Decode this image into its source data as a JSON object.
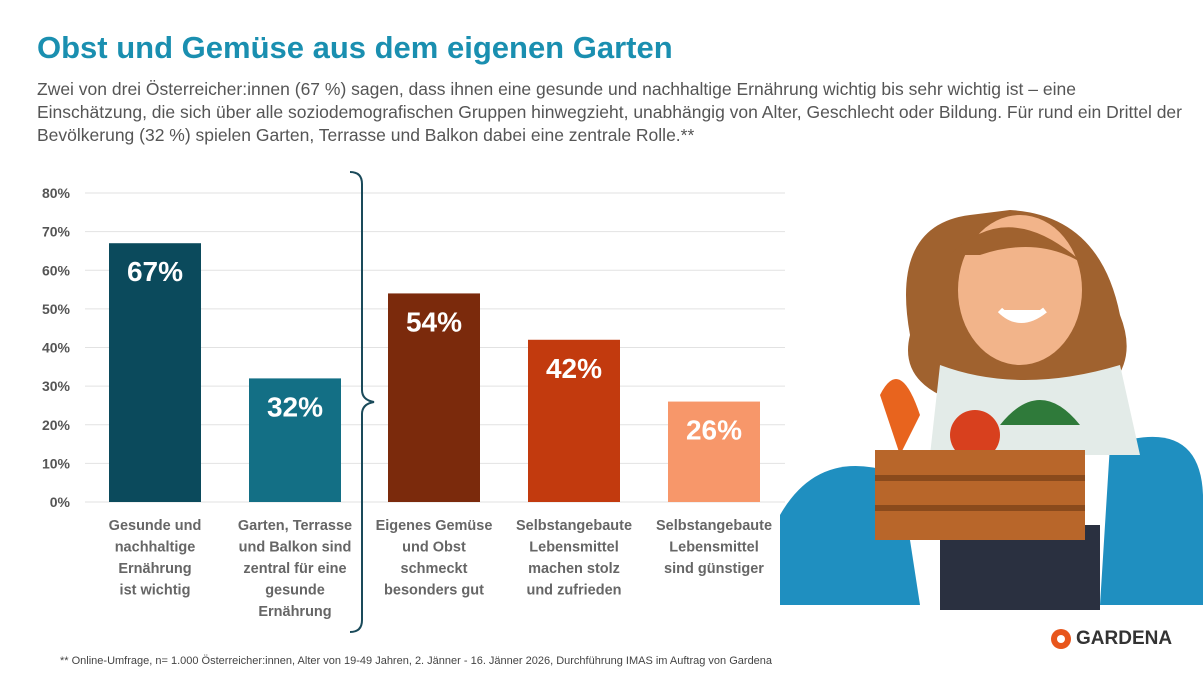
{
  "title": "Obst und Gemüse aus dem eigenen Garten",
  "subtitle": "Zwei von drei Österreicher:innen (67 %) sagen, dass ihnen eine gesunde und nachhaltige Ernährung wichtig bis sehr wichtig ist – eine Einschätzung, die sich über alle soziodemografischen Gruppen hinwegzieht, unabhängig von Alter, Geschlecht oder Bildung. Für rund ein Drittel der Bevölkerung (32 %) spielen Garten, Terrasse und Balkon dabei eine zentrale Rolle.**",
  "footnote": "** Online-Umfrage, n= 1.000 Österreicher:innen, Alter von 19-49 Jahren, 2. Jänner - 16. Jänner 2026, Durchführung IMAS  im Auftrag von Gardena",
  "logo": "GARDENA",
  "colors": {
    "title": "#1a8fb0",
    "brand": "#e8561c"
  },
  "chart_data": {
    "type": "bar",
    "categories": [
      [
        "Gesunde und",
        "nachhaltige",
        "Ernährung",
        "ist wichtig"
      ],
      [
        "Garten, Terrasse",
        "und Balkon sind",
        "zentral für eine",
        "gesunde",
        "Ernährung"
      ],
      [
        "Eigenes Gemüse",
        "und Obst",
        "schmeckt",
        "besonders gut"
      ],
      [
        "Selbstangebaute",
        "Lebensmittel",
        "machen stolz",
        "und zufrieden"
      ],
      [
        "Selbstangebaute",
        "Lebensmittel",
        "sind günstiger"
      ]
    ],
    "values": [
      67,
      32,
      54,
      42,
      26
    ],
    "data_labels": [
      "67%",
      "32%",
      "54%",
      "42%",
      "26%"
    ],
    "colors": [
      "#0b4a5c",
      "#136f85",
      "#7b2a0c",
      "#c23a0e",
      "#f7976a"
    ],
    "yticks": [
      "0%",
      "10%",
      "20%",
      "30%",
      "40%",
      "50%",
      "60%",
      "70%",
      "80%"
    ],
    "ylim": [
      0,
      80
    ],
    "grid": true
  }
}
